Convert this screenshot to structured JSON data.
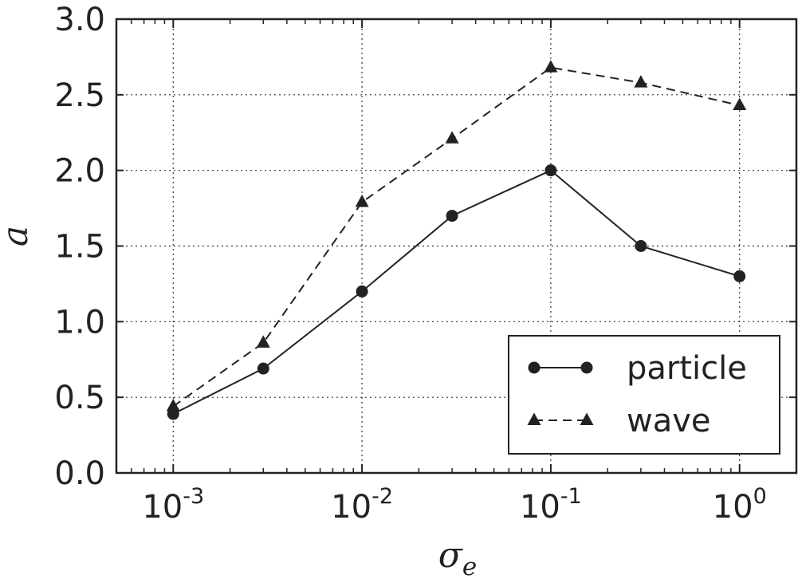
{
  "chart_data": {
    "type": "line",
    "xscale": "log",
    "xlabel": "σ",
    "xlabel_subscript": "e",
    "ylabel": "a",
    "xlim": [
      0.0005,
      2
    ],
    "ylim": [
      0,
      3
    ],
    "grid": true,
    "legend_position": "bottom-right",
    "x_ticks": [
      {
        "value": 0.001,
        "base": "10",
        "exp": "-3"
      },
      {
        "value": 0.01,
        "base": "10",
        "exp": "-2"
      },
      {
        "value": 0.1,
        "base": "10",
        "exp": "-1"
      },
      {
        "value": 1,
        "base": "10",
        "exp": "0"
      }
    ],
    "y_ticks": [
      {
        "value": 0.0,
        "label": "0.0"
      },
      {
        "value": 0.5,
        "label": "0.5"
      },
      {
        "value": 1.0,
        "label": "1.0"
      },
      {
        "value": 1.5,
        "label": "1.5"
      },
      {
        "value": 2.0,
        "label": "2.0"
      },
      {
        "value": 2.5,
        "label": "2.5"
      },
      {
        "value": 3.0,
        "label": "3.0"
      }
    ],
    "x": [
      0.001,
      0.003,
      0.01,
      0.03,
      0.1,
      0.3,
      1
    ],
    "series": [
      {
        "name": "particle",
        "marker": "circle",
        "linestyle": "solid",
        "color": "#222222",
        "values": [
          0.39,
          0.69,
          1.2,
          1.7,
          2.0,
          1.5,
          1.3
        ]
      },
      {
        "name": "wave",
        "marker": "triangle",
        "linestyle": "dashed",
        "color": "#222222",
        "values": [
          0.44,
          0.86,
          1.79,
          2.21,
          2.68,
          2.58,
          2.43
        ]
      }
    ]
  }
}
